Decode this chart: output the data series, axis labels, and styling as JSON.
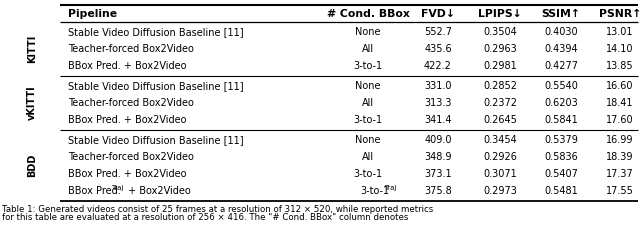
{
  "header": [
    "Pipeline",
    "# Cond. BBox",
    "FVD↓",
    "LPIPS↓",
    "SSIM↑",
    "PSNR↑"
  ],
  "sections": [
    {
      "label": "KITTI",
      "rows": [
        [
          "Stable Video Diffusion Baseline [11]",
          "None",
          "552.7",
          "0.3504",
          "0.4030",
          "13.01"
        ],
        [
          "Teacher-forced Box2Video",
          "All",
          "435.6",
          "0.2963",
          "0.4394",
          "14.10"
        ],
        [
          "BBox Pred. + Box2Video",
          "3-to-1",
          "422.2",
          "0.2981",
          "0.4277",
          "13.85"
        ]
      ]
    },
    {
      "label": "vKITTI",
      "rows": [
        [
          "Stable Video Diffusion Baseline [11]",
          "None",
          "331.0",
          "0.2852",
          "0.5540",
          "16.60"
        ],
        [
          "Teacher-forced Box2Video",
          "All",
          "313.3",
          "0.2372",
          "0.6203",
          "18.41"
        ],
        [
          "BBox Pred. + Box2Video",
          "3-to-1",
          "341.4",
          "0.2645",
          "0.5841",
          "17.60"
        ]
      ]
    },
    {
      "label": "BDD",
      "rows": [
        [
          "Stable Video Diffusion Baseline [11]",
          "None",
          "409.0",
          "0.3454",
          "0.5379",
          "16.99"
        ],
        [
          "Teacher-forced Box2Video",
          "All",
          "348.9",
          "0.2926",
          "0.5836",
          "18.39"
        ],
        [
          "BBox Pred. + Box2Video",
          "3-to-1",
          "373.1",
          "0.3071",
          "0.5407",
          "17.37"
        ],
        [
          "BBox Pred.TRAJ + Box2Video",
          "3-to-1TRAJ",
          "375.8",
          "0.2973",
          "0.5481",
          "17.55"
        ]
      ]
    }
  ],
  "caption_line1": "Table 1: Generated videos consist of 25 frames at a resolution of 312 × 520, while reported metrics",
  "caption_line2": "for this table are evaluated at a resolution of 256 × 416. The \"# Cond. BBox\" column denotes"
}
